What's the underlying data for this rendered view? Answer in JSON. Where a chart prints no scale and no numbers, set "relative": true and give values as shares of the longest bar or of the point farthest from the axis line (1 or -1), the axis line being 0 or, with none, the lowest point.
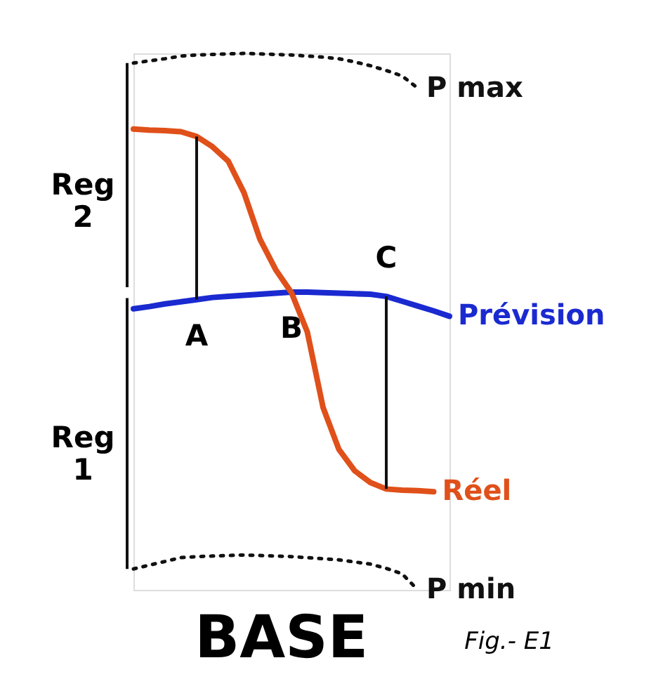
{
  "chart_data": {
    "type": "line",
    "relative": true,
    "tick_labels": false,
    "grid": false,
    "legend": false,
    "marker": "none",
    "categories": [
      null,
      null,
      null,
      null,
      null,
      null,
      null,
      null,
      null,
      null,
      null,
      null,
      null,
      null,
      null,
      null,
      null,
      null,
      null,
      null,
      null
    ],
    "series": [
      {
        "name": "P max",
        "color": "#111111",
        "line_style": "dotted",
        "values": [
          0.982,
          0.986,
          0.99,
          0.995,
          0.997,
          0.998,
          0.999,
          1.0,
          0.999,
          0.998,
          0.997,
          0.995,
          0.993,
          0.99,
          0.984,
          0.977,
          0.968,
          0.958,
          0.935,
          null,
          null
        ]
      },
      {
        "name": "Prévision",
        "color": "#1a2ad0",
        "line_style": "solid",
        "values": [
          0.524,
          0.528,
          0.533,
          0.537,
          0.541,
          0.545,
          0.547,
          0.549,
          0.551,
          0.553,
          0.555,
          0.555,
          0.554,
          0.553,
          0.552,
          0.551,
          0.547,
          0.538,
          0.529,
          0.52,
          0.51
        ]
      },
      {
        "name": "Réel",
        "color": "#e0501a",
        "line_style": "solid",
        "values": [
          0.859,
          0.857,
          0.856,
          0.854,
          0.845,
          0.826,
          0.799,
          0.74,
          0.654,
          0.597,
          0.554,
          0.481,
          0.34,
          0.262,
          0.222,
          0.2,
          0.188,
          0.186,
          0.185,
          0.183,
          null
        ]
      },
      {
        "name": "P min",
        "color": "#111111",
        "line_style": "dotted",
        "values": [
          0.039,
          0.046,
          0.053,
          0.06,
          0.062,
          0.063,
          0.064,
          0.065,
          0.064,
          0.063,
          0.062,
          0.06,
          0.058,
          0.056,
          0.052,
          0.048,
          0.04,
          0.03,
          0.0,
          null,
          null
        ]
      }
    ],
    "annotations": [
      "A",
      "B",
      "C",
      "Reg 2",
      "Reg 1",
      "BASE",
      "Fig.- E1"
    ]
  }
}
